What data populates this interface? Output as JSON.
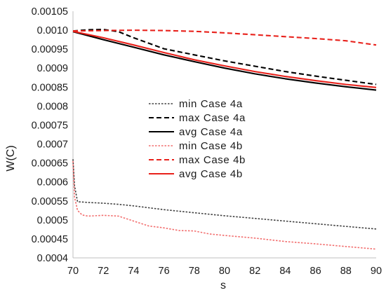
{
  "chart_data": {
    "type": "line",
    "title": "",
    "xlabel": "s",
    "ylabel": "W(C)",
    "xlim": [
      70,
      90
    ],
    "ylim": [
      0.0004,
      0.00105
    ],
    "x_ticks": [
      "70",
      "72",
      "74",
      "76",
      "78",
      "80",
      "82",
      "84",
      "86",
      "88",
      "90"
    ],
    "y_ticks": [
      "0.0004",
      "0.00045",
      "0.0005",
      "0.00055",
      "0.0006",
      "0.00065",
      "0.0007",
      "0.00075",
      "0.0008",
      "0.00085",
      "0.0009",
      "0.00095",
      "0.0010",
      "0.00105"
    ],
    "grid": false,
    "legend_position": "center",
    "series": [
      {
        "name": "min Case 4a",
        "color": "#404040",
        "dash": "dotted",
        "points": [
          [
            70,
            0.00066
          ],
          [
            70.1,
            0.00059
          ],
          [
            70.3,
            0.000548
          ],
          [
            71,
            0.000546
          ],
          [
            72,
            0.000544
          ],
          [
            73,
            0.000541
          ],
          [
            74,
            0.000537
          ],
          [
            75,
            0.000532
          ],
          [
            76,
            0.000527
          ],
          [
            78,
            0.000519
          ],
          [
            80,
            0.000511
          ],
          [
            82,
            0.000504
          ],
          [
            84,
            0.000497
          ],
          [
            86,
            0.00049
          ],
          [
            88,
            0.000483
          ],
          [
            90,
            0.000476
          ]
        ]
      },
      {
        "name": "max Case 4a",
        "color": "#000000",
        "dash": "dashed",
        "points": [
          [
            70,
            0.000998
          ],
          [
            71,
            0.001001
          ],
          [
            72,
            0.001002
          ],
          [
            73,
            0.000996
          ],
          [
            74,
            0.00098
          ],
          [
            76,
            0.000951
          ],
          [
            78,
            0.000935
          ],
          [
            80,
            0.000919
          ],
          [
            82,
            0.000905
          ],
          [
            84,
            0.000891
          ],
          [
            86,
            0.000879
          ],
          [
            88,
            0.000868
          ],
          [
            90,
            0.000857
          ]
        ]
      },
      {
        "name": "avg Case 4a",
        "color": "#000000",
        "dash": "solid",
        "points": [
          [
            70,
            0.000996
          ],
          [
            72,
            0.000975
          ],
          [
            74,
            0.000955
          ],
          [
            76,
            0.000935
          ],
          [
            78,
            0.000917
          ],
          [
            80,
            0.0009
          ],
          [
            82,
            0.000885
          ],
          [
            84,
            0.000872
          ],
          [
            86,
            0.000861
          ],
          [
            88,
            0.000851
          ],
          [
            90,
            0.000842
          ]
        ]
      },
      {
        "name": "min Case 4b",
        "color": "#f26d6d",
        "dash": "dotted",
        "points": [
          [
            70,
            0.000655
          ],
          [
            70.1,
            0.00056
          ],
          [
            70.3,
            0.000525
          ],
          [
            70.6,
            0.000513
          ],
          [
            71,
            0.00051
          ],
          [
            72,
            0.000512
          ],
          [
            73,
            0.00051
          ],
          [
            74,
            0.000497
          ],
          [
            75,
            0.000484
          ],
          [
            76,
            0.000479
          ],
          [
            77,
            0.000472
          ],
          [
            78,
            0.000471
          ],
          [
            79,
            0.000463
          ],
          [
            80,
            0.000459
          ],
          [
            82,
            0.000452
          ],
          [
            84,
            0.000443
          ],
          [
            86,
            0.000437
          ],
          [
            88,
            0.00043
          ],
          [
            90,
            0.000423
          ]
        ]
      },
      {
        "name": "max Case 4b",
        "color": "#e8211b",
        "dash": "dashed",
        "points": [
          [
            70,
            0.000998
          ],
          [
            72,
            0.000999
          ],
          [
            74,
            0.001
          ],
          [
            76,
            0.000999
          ],
          [
            78,
            0.000997
          ],
          [
            80,
            0.000993
          ],
          [
            82,
            0.000988
          ],
          [
            84,
            0.000983
          ],
          [
            86,
            0.000978
          ],
          [
            88,
            0.000972
          ],
          [
            90,
            0.000961
          ]
        ]
      },
      {
        "name": "avg Case 4b",
        "color": "#e8211b",
        "dash": "solid",
        "points": [
          [
            70,
            0.000997
          ],
          [
            72,
            0.00098
          ],
          [
            74,
            0.000961
          ],
          [
            76,
            0.000941
          ],
          [
            78,
            0.000922
          ],
          [
            80,
            0.000906
          ],
          [
            82,
            0.000891
          ],
          [
            84,
            0.000878
          ],
          [
            86,
            0.000867
          ],
          [
            88,
            0.000857
          ],
          [
            90,
            0.000849
          ]
        ]
      }
    ]
  }
}
